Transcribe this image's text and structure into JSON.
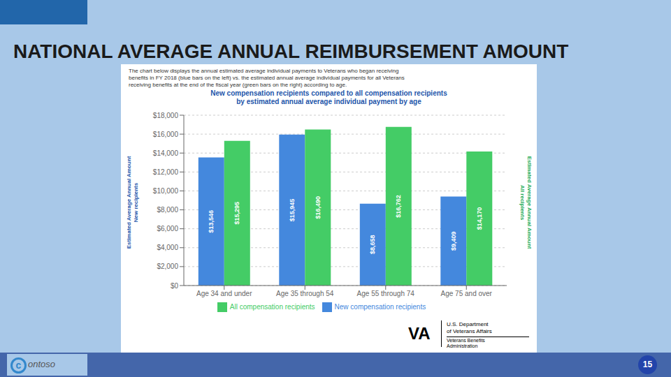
{
  "chart_data": {
    "type": "bar",
    "title": "NATIONAL AVERAGE ANNUAL REIMBURSEMENT AMOUNT",
    "subtitle": "New compensation recipients compared to all compensation recipients\nby estimated annual average individual payment by age",
    "ylabel": "Estimated Average Annual Amount\nNew recipients",
    "y2label": "Estimated Average Annual Amount\nAll recipients",
    "annotations": [
      "The chart below displays the annual estimated average individual payments to Veterans who began receiving\nbenefits in FY 2018 (blue bars on the left) vs. the estimated annual average individual payments for all Veterans\nreceiving benefits at the end of the fiscal year (green bars on the right) according to age.",
      "c",
      "ontoso",
      "VA",
      "U.S. Department",
      "of Veterans Affairs",
      "Veterans Benefits",
      "Administration",
      "15"
    ],
    "categories": [
      "Age 34 and under",
      "Age 35 through 54",
      "Age 55 through 74",
      "Age 75 and over"
    ],
    "series": [
      {
        "name": "New compensation recipients",
        "color": "#4488dd",
        "values": [
          13546,
          15945,
          8658,
          9409
        ],
        "value_labels": [
          "$13,546",
          "$15,945",
          "$8,658",
          "$9,409"
        ]
      },
      {
        "name": "All compensation recipients",
        "color": "#44cc66",
        "values": [
          15295,
          16490,
          16762,
          14170
        ],
        "value_labels": [
          "$15,295",
          "$16,490",
          "$16,762",
          "$14,170"
        ]
      }
    ],
    "ylim": [
      0,
      18000
    ],
    "yticks": [
      {
        "value": 0,
        "label": "$0"
      },
      {
        "value": 2000,
        "label": "$2,000"
      },
      {
        "value": 4000,
        "label": "$4,000"
      },
      {
        "value": 6000,
        "label": "$6,000"
      },
      {
        "value": 8000,
        "label": "$8,000"
      },
      {
        "value": 10000,
        "label": "$10,000"
      },
      {
        "value": 12000,
        "label": "$12,000"
      },
      {
        "value": 14000,
        "label": "$14,000"
      },
      {
        "value": 16000,
        "label": "$16,000"
      },
      {
        "value": 18000,
        "label": "$18,000"
      }
    ],
    "grid": true,
    "legend": "bottom",
    "data_labels": true
  }
}
